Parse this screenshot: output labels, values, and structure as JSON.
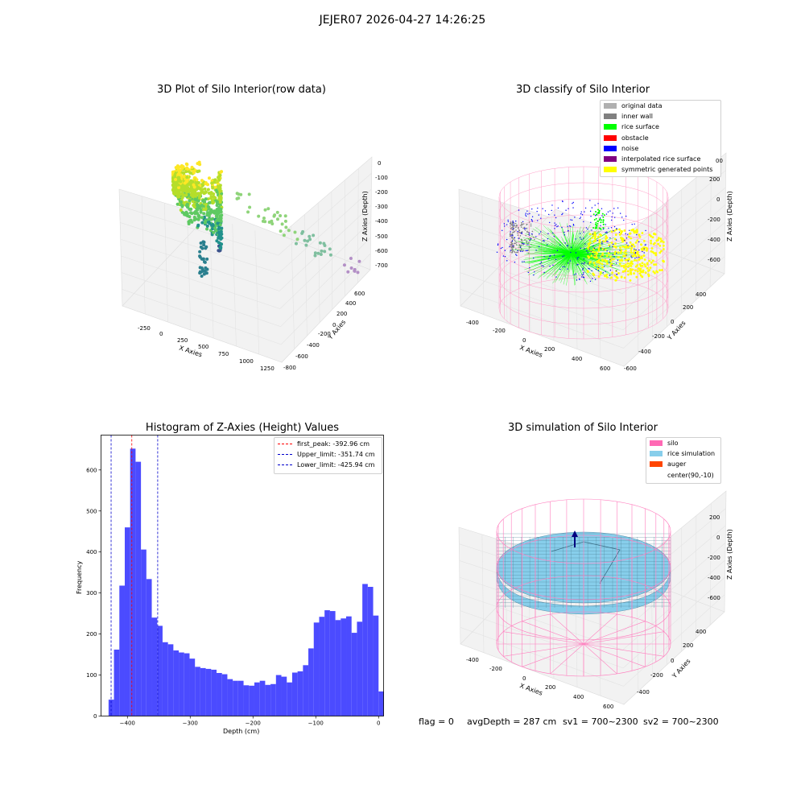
{
  "figure_title": "JEJER07 2026-04-27 14:26:25",
  "status": {
    "flag": "flag = 0",
    "avg_depth": "avgDepth = 287 cm",
    "sv1": "sv1 = 700~2300",
    "sv2": "sv2 = 700~2300"
  },
  "colors": {
    "histogram_bar": "#4b4bff",
    "peak_line": "#ff0000",
    "limit_line": "#0000cc",
    "original_data": "#b0b0b0",
    "inner_wall": "#808080",
    "rice_surface": "#00ff00",
    "obstacle": "#ff0000",
    "noise": "#0000ff",
    "interpolated_rice_surface": "#800080",
    "symmetric_generated_points": "#ffff00",
    "silo": "#ff69b4",
    "rice_simulation": "#87ceeb",
    "auger": "#ff4500"
  },
  "chart_data": [
    {
      "type": "scatter3d",
      "title": "3D Plot of Silo Interior(row data)",
      "xlabel": "X Axies",
      "ylabel": "Y Axies",
      "zlabel": "Z Axies (Depth)",
      "x_ticks": [
        "-250",
        "0",
        "250",
        "500",
        "750",
        "1000",
        "1250"
      ],
      "y_ticks": [
        "-800",
        "-600",
        "-400",
        "-200",
        "0",
        "200",
        "400",
        "600"
      ],
      "z_ticks": [
        "0",
        "-100",
        "-200",
        "-300",
        "-400",
        "-500",
        "-600",
        "-700"
      ],
      "colormap": "viridis"
    },
    {
      "type": "scatter3d",
      "title": "3D classify of Silo Interior",
      "xlabel": "X Axies",
      "ylabel": "Y Axies",
      "zlabel": "Z Axies (Depth)",
      "x_ticks": [
        "-400",
        "-200",
        "0",
        "200",
        "400",
        "600"
      ],
      "y_ticks": [
        "-600",
        "-400",
        "-200",
        "0",
        "200",
        "400"
      ],
      "z_ticks": [
        "200",
        "0",
        "-200",
        "-400",
        "-600"
      ],
      "z_tick_top_partial": "00",
      "legend": [
        "original data",
        "inner wall",
        "rice surface",
        "obstacle",
        "noise",
        "interpolated rice surface",
        "symmetric generated points"
      ],
      "legend_placement": "top-right"
    },
    {
      "type": "bar",
      "title": "Histogram of Z-Axies (Height) Values",
      "xlabel": "Depth (cm)",
      "ylabel": "Frequency",
      "bin_start": -430,
      "bin_width": 8.6,
      "values": [
        40,
        162,
        318,
        460,
        652,
        620,
        406,
        334,
        240,
        220,
        180,
        175,
        160,
        155,
        153,
        140,
        120,
        117,
        115,
        113,
        105,
        102,
        90,
        86,
        86,
        75,
        74,
        82,
        86,
        76,
        78,
        100,
        96,
        82,
        106,
        109,
        124,
        165,
        228,
        242,
        258,
        256,
        234,
        238,
        243,
        203,
        230,
        322,
        315,
        245,
        60
      ],
      "xlim": [
        -442,
        8
      ],
      "ylim": [
        0,
        685
      ],
      "x_ticks": [
        -400,
        -300,
        -200,
        -100,
        0
      ],
      "y_ticks": [
        0,
        100,
        200,
        300,
        400,
        500,
        600
      ],
      "vlines": [
        {
          "name": "first_peak: -392.96 cm",
          "x": -392.96,
          "color": "#ff0000"
        },
        {
          "name": "Upper_limit: -351.74 cm",
          "x": -351.74,
          "color": "#0000cc"
        },
        {
          "name": "Lower_limit: -425.94 cm",
          "x": -425.94,
          "color": "#0000cc"
        }
      ],
      "legend_placement": "top-right",
      "grid": false
    },
    {
      "type": "surface3d",
      "title": "3D simulation of Silo Interior",
      "xlabel": "X Axies",
      "ylabel": "Y Axies",
      "zlabel": "Z Axies (Depth)",
      "x_ticks": [
        "-400",
        "-200",
        "0",
        "200",
        "400",
        "600"
      ],
      "y_ticks": [
        "-400",
        "-200",
        "0",
        "200",
        "400"
      ],
      "z_ticks": [
        "200",
        "0",
        "-200",
        "-400",
        "-600"
      ],
      "legend": [
        "silo",
        "rice simulation",
        "auger",
        "center(90,-10)"
      ],
      "legend_placement": "top-right"
    }
  ]
}
